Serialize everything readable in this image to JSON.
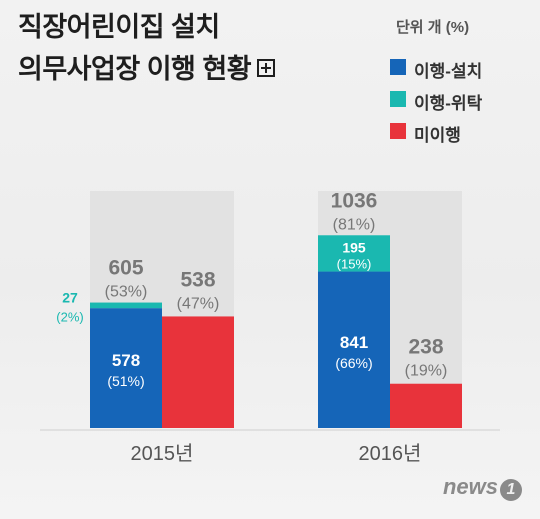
{
  "title_line1": "직장어린이집 설치",
  "title_line2": "의무사업장 이행 현황",
  "unit": "단위 개 (%)",
  "legend": [
    {
      "label": "이행-설치",
      "color": "#1565b8"
    },
    {
      "label": "이행-위탁",
      "color": "#1ab8b0"
    },
    {
      "label": "미이행",
      "color": "#e8333b"
    }
  ],
  "logo": {
    "text": "news",
    "badge": "1"
  },
  "chart_data": {
    "type": "bar",
    "categories": [
      "2015년",
      "2016년"
    ],
    "groups": [
      {
        "year": "2015년",
        "implemented": {
          "total": 605,
          "total_pct": "(53%)",
          "install": 578,
          "install_pct": "(51%)",
          "consign": 27,
          "consign_pct": "(2%)"
        },
        "not_implemented": {
          "value": 538,
          "pct": "(47%)"
        }
      },
      {
        "year": "2016년",
        "implemented": {
          "total": 1036,
          "total_pct": "(81%)",
          "install": 841,
          "install_pct": "(66%)",
          "consign": 195,
          "consign_pct": "(15%)"
        },
        "not_implemented": {
          "value": 238,
          "pct": "(19%)"
        }
      }
    ],
    "colors": {
      "install": "#1565b8",
      "consign": "#1ab8b0",
      "not_implemented": "#e8333b",
      "background_bar": "#e2e2e2"
    }
  }
}
